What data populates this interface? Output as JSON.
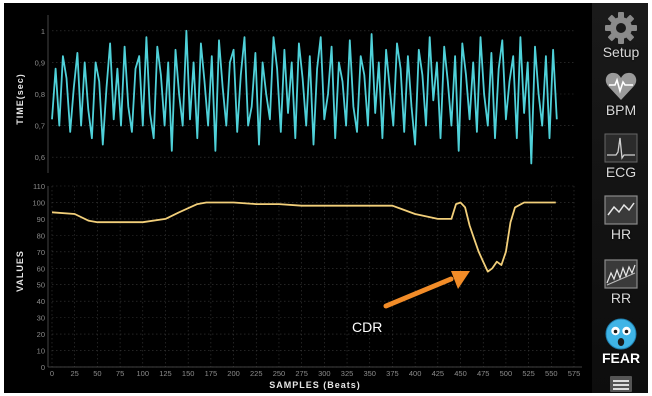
{
  "top_chart": {
    "ylabel": "TIME(sec)",
    "yticks": [
      "1",
      "0,9",
      "0,8",
      "0,7",
      "0,6"
    ],
    "color": "#4fd1d9"
  },
  "bottom_chart": {
    "ylabel": "VALUES",
    "yticks": [
      "110",
      "100",
      "90",
      "80",
      "70",
      "60",
      "50",
      "40",
      "30",
      "20",
      "10",
      "0"
    ],
    "xlabel": "SAMPLES (Beats)",
    "xticks": [
      "0",
      "25",
      "50",
      "75",
      "100",
      "125",
      "150",
      "175",
      "200",
      "225",
      "250",
      "275",
      "300",
      "325",
      "350",
      "375",
      "400",
      "425",
      "450",
      "475",
      "500",
      "525",
      "550",
      "575"
    ],
    "color": "#f2cf7a"
  },
  "annotation": {
    "label": "CDR",
    "arrow_color": "#f28c28"
  },
  "sidebar": {
    "items": [
      {
        "label": "Setup",
        "icon": "gear-icon"
      },
      {
        "label": "BPM",
        "icon": "heart-pulse-icon"
      },
      {
        "label": "ECG",
        "icon": "ecg-icon"
      },
      {
        "label": "HR",
        "icon": "hr-graph-icon"
      },
      {
        "label": "RR",
        "icon": "rr-graph-icon"
      },
      {
        "label": "FEAR",
        "icon": "fear-face-icon"
      },
      {
        "label": "",
        "icon": "menu-icon"
      }
    ]
  },
  "chart_data": [
    {
      "type": "line",
      "ylabel": "TIME(sec)",
      "ylim": [
        0.55,
        1.05
      ],
      "xlim": [
        0,
        575
      ],
      "series": [
        {
          "x": [
            0,
            4,
            8,
            12,
            16,
            20,
            24,
            28,
            32,
            36,
            40,
            44,
            48,
            52,
            56,
            60,
            64,
            68,
            72,
            76,
            80,
            84,
            88,
            92,
            96,
            100,
            104,
            108,
            112,
            116,
            120,
            124,
            128,
            132,
            136,
            140,
            144,
            148,
            152,
            156,
            160,
            164,
            168,
            172,
            176,
            180,
            184,
            188,
            192,
            196,
            200,
            204,
            208,
            212,
            216,
            220,
            224,
            228,
            232,
            236,
            240,
            244,
            248,
            252,
            256,
            260,
            264,
            268,
            272,
            276,
            280,
            284,
            288,
            292,
            296,
            300,
            304,
            308,
            312,
            316,
            320,
            324,
            328,
            332,
            336,
            340,
            344,
            348,
            352,
            356,
            360,
            364,
            368,
            372,
            376,
            380,
            384,
            388,
            392,
            396,
            400,
            404,
            408,
            412,
            416,
            420,
            424,
            428,
            432,
            436,
            440,
            444,
            448,
            452,
            456,
            460,
            464,
            468,
            472,
            476,
            480,
            484,
            488,
            492,
            496,
            500,
            504,
            508,
            512,
            516,
            520,
            524,
            528,
            532,
            536,
            540,
            544,
            548,
            552,
            556
          ],
          "y": [
            0.72,
            0.88,
            0.7,
            0.92,
            0.85,
            0.68,
            0.82,
            0.93,
            0.7,
            0.9,
            0.75,
            0.66,
            0.9,
            0.84,
            0.64,
            0.82,
            0.96,
            0.72,
            0.88,
            0.7,
            0.95,
            0.76,
            0.68,
            0.88,
            0.92,
            0.7,
            0.98,
            0.74,
            0.66,
            0.95,
            0.86,
            0.7,
            0.9,
            0.62,
            0.94,
            0.8,
            0.7,
            1.0,
            0.72,
            0.9,
            0.66,
            0.96,
            0.84,
            0.7,
            0.92,
            0.62,
            0.97,
            0.82,
            0.7,
            0.9,
            0.94,
            0.68,
            0.86,
            0.98,
            0.7,
            0.76,
            0.93,
            0.64,
            0.9,
            0.8,
            0.72,
            0.98,
            0.88,
            0.68,
            0.94,
            0.74,
            0.9,
            0.66,
            0.96,
            0.85,
            0.7,
            0.92,
            0.64,
            0.88,
            0.98,
            0.72,
            0.8,
            0.95,
            0.66,
            0.9,
            0.84,
            0.7,
            0.97,
            0.76,
            0.68,
            0.92,
            0.86,
            0.7,
            0.99,
            0.74,
            0.9,
            0.66,
            0.94,
            0.82,
            0.7,
            0.96,
            0.88,
            0.68,
            0.92,
            0.76,
            0.64,
            0.94,
            0.86,
            0.7,
            0.98,
            0.78,
            0.9,
            0.66,
            0.95,
            0.84,
            0.7,
            0.92,
            0.62,
            0.96,
            0.86,
            0.72,
            0.9,
            0.68,
            0.98,
            0.8,
            0.7,
            0.93,
            0.66,
            0.88,
            0.97,
            0.72,
            0.84,
            0.92,
            0.66,
            0.98,
            0.74,
            0.9,
            0.58,
            0.95,
            0.8,
            0.7,
            0.92,
            0.66,
            0.94,
            0.72
          ]
        }
      ]
    },
    {
      "type": "line",
      "ylabel": "VALUES",
      "xlabel": "SAMPLES (Beats)",
      "ylim": [
        0,
        110
      ],
      "xlim": [
        0,
        575
      ],
      "series": [
        {
          "x": [
            0,
            25,
            40,
            50,
            75,
            100,
            125,
            140,
            160,
            170,
            200,
            225,
            250,
            275,
            300,
            325,
            350,
            375,
            385,
            400,
            425,
            440,
            445,
            450,
            455,
            460,
            465,
            470,
            475,
            480,
            485,
            490,
            495,
            500,
            505,
            510,
            520,
            550,
            555
          ],
          "y": [
            94,
            93,
            89,
            88,
            88,
            88,
            90,
            94,
            99,
            100,
            100,
            99,
            99,
            98,
            98,
            98,
            98,
            98,
            96,
            93,
            90,
            90,
            99,
            100,
            97,
            86,
            78,
            70,
            64,
            58,
            60,
            64,
            62,
            70,
            88,
            97,
            100,
            100,
            100
          ]
        }
      ]
    }
  ]
}
